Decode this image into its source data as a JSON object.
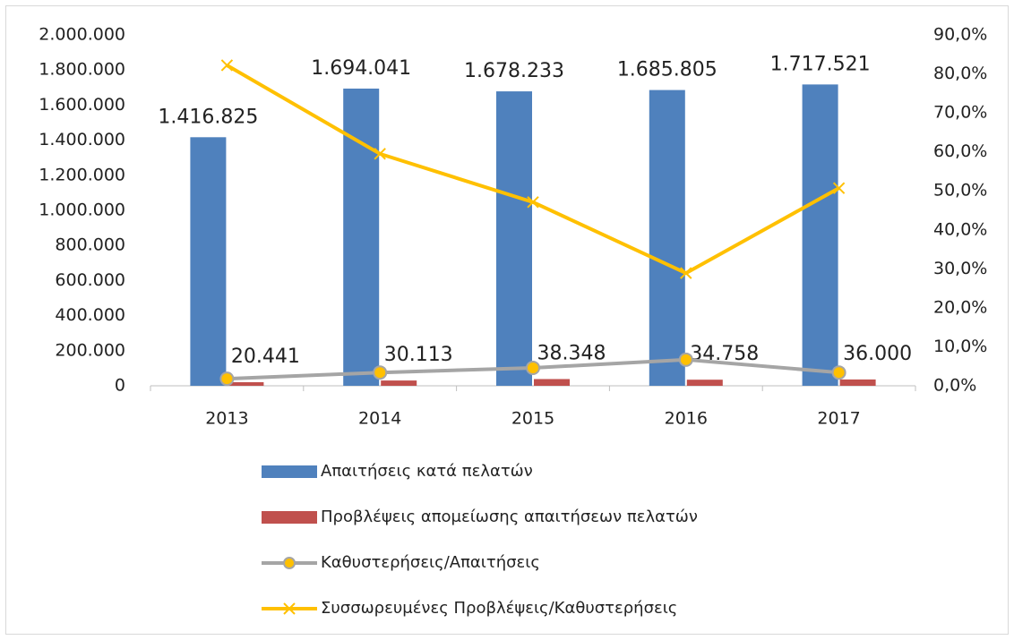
{
  "chart_data": {
    "type": "bar",
    "categories": [
      "2013",
      "2014",
      "2015",
      "2016",
      "2017"
    ],
    "series": [
      {
        "name": "Απαιτήσεις κατά πελατών",
        "type": "bar",
        "color": "#4f81bd",
        "values": [
          1416825,
          1694041,
          1678233,
          1685805,
          1717521
        ],
        "value_labels": [
          "1.416.825",
          "1.694.041",
          "1.678.233",
          "1.685.805",
          "1.717.521"
        ]
      },
      {
        "name": "Προβλέψεις απομείωσης απαιτήσεων πελατών",
        "type": "bar",
        "color": "#c0504d",
        "values": [
          20441,
          30113,
          38348,
          34758,
          36000
        ],
        "value_labels": [
          "20.441",
          "30.113",
          "38.348",
          "34.758",
          "36.000"
        ]
      },
      {
        "name": "Καθυστερήσεις/Απαιτήσεις",
        "type": "line",
        "axis": "y2",
        "color": "#a5a5a5",
        "marker": "circle",
        "marker_color": "#ffc000",
        "values": [
          1.8,
          3.4,
          4.6,
          6.7,
          3.4
        ]
      },
      {
        "name": "Συσσωρευμένες Προβλέψεις/Καθυστερήσεις",
        "type": "line",
        "axis": "y2",
        "color": "#ffc000",
        "marker": "x",
        "values": [
          82.2,
          59.5,
          47.1,
          28.9,
          50.7
        ]
      }
    ],
    "ylim": [
      0,
      2000000
    ],
    "yticks": [
      0,
      {
        "value": 200000,
        "label": "200.000"
      },
      {
        "value": 400000,
        "label": "400.000"
      },
      {
        "value": 600000,
        "label": "600.000"
      },
      {
        "value": 800000,
        "label": "800.000"
      },
      {
        "value": 1000000,
        "label": "1.000.000"
      },
      {
        "value": 1200000,
        "label": "1.200.000"
      },
      {
        "value": 1400000,
        "label": "1.400.000"
      },
      {
        "value": 1600000,
        "label": "1.600.000"
      },
      {
        "value": 1800000,
        "label": "1.800.000"
      },
      {
        "value": 2000000,
        "label": "2.000.000"
      }
    ],
    "y2lim": [
      0,
      90
    ],
    "y2ticks": [
      {
        "value": 0,
        "label": "0,0%"
      },
      {
        "value": 10,
        "label": "10,0%"
      },
      {
        "value": 20,
        "label": "20,0%"
      },
      {
        "value": 30,
        "label": "30,0%"
      },
      {
        "value": 40,
        "label": "40,0%"
      },
      {
        "value": 50,
        "label": "50,0%"
      },
      {
        "value": 60,
        "label": "60,0%"
      },
      {
        "value": 70,
        "label": "70,0%"
      },
      {
        "value": 80,
        "label": "80,0%"
      },
      {
        "value": 90,
        "label": "90,0%"
      }
    ],
    "grid": false,
    "legend": "bottom"
  }
}
